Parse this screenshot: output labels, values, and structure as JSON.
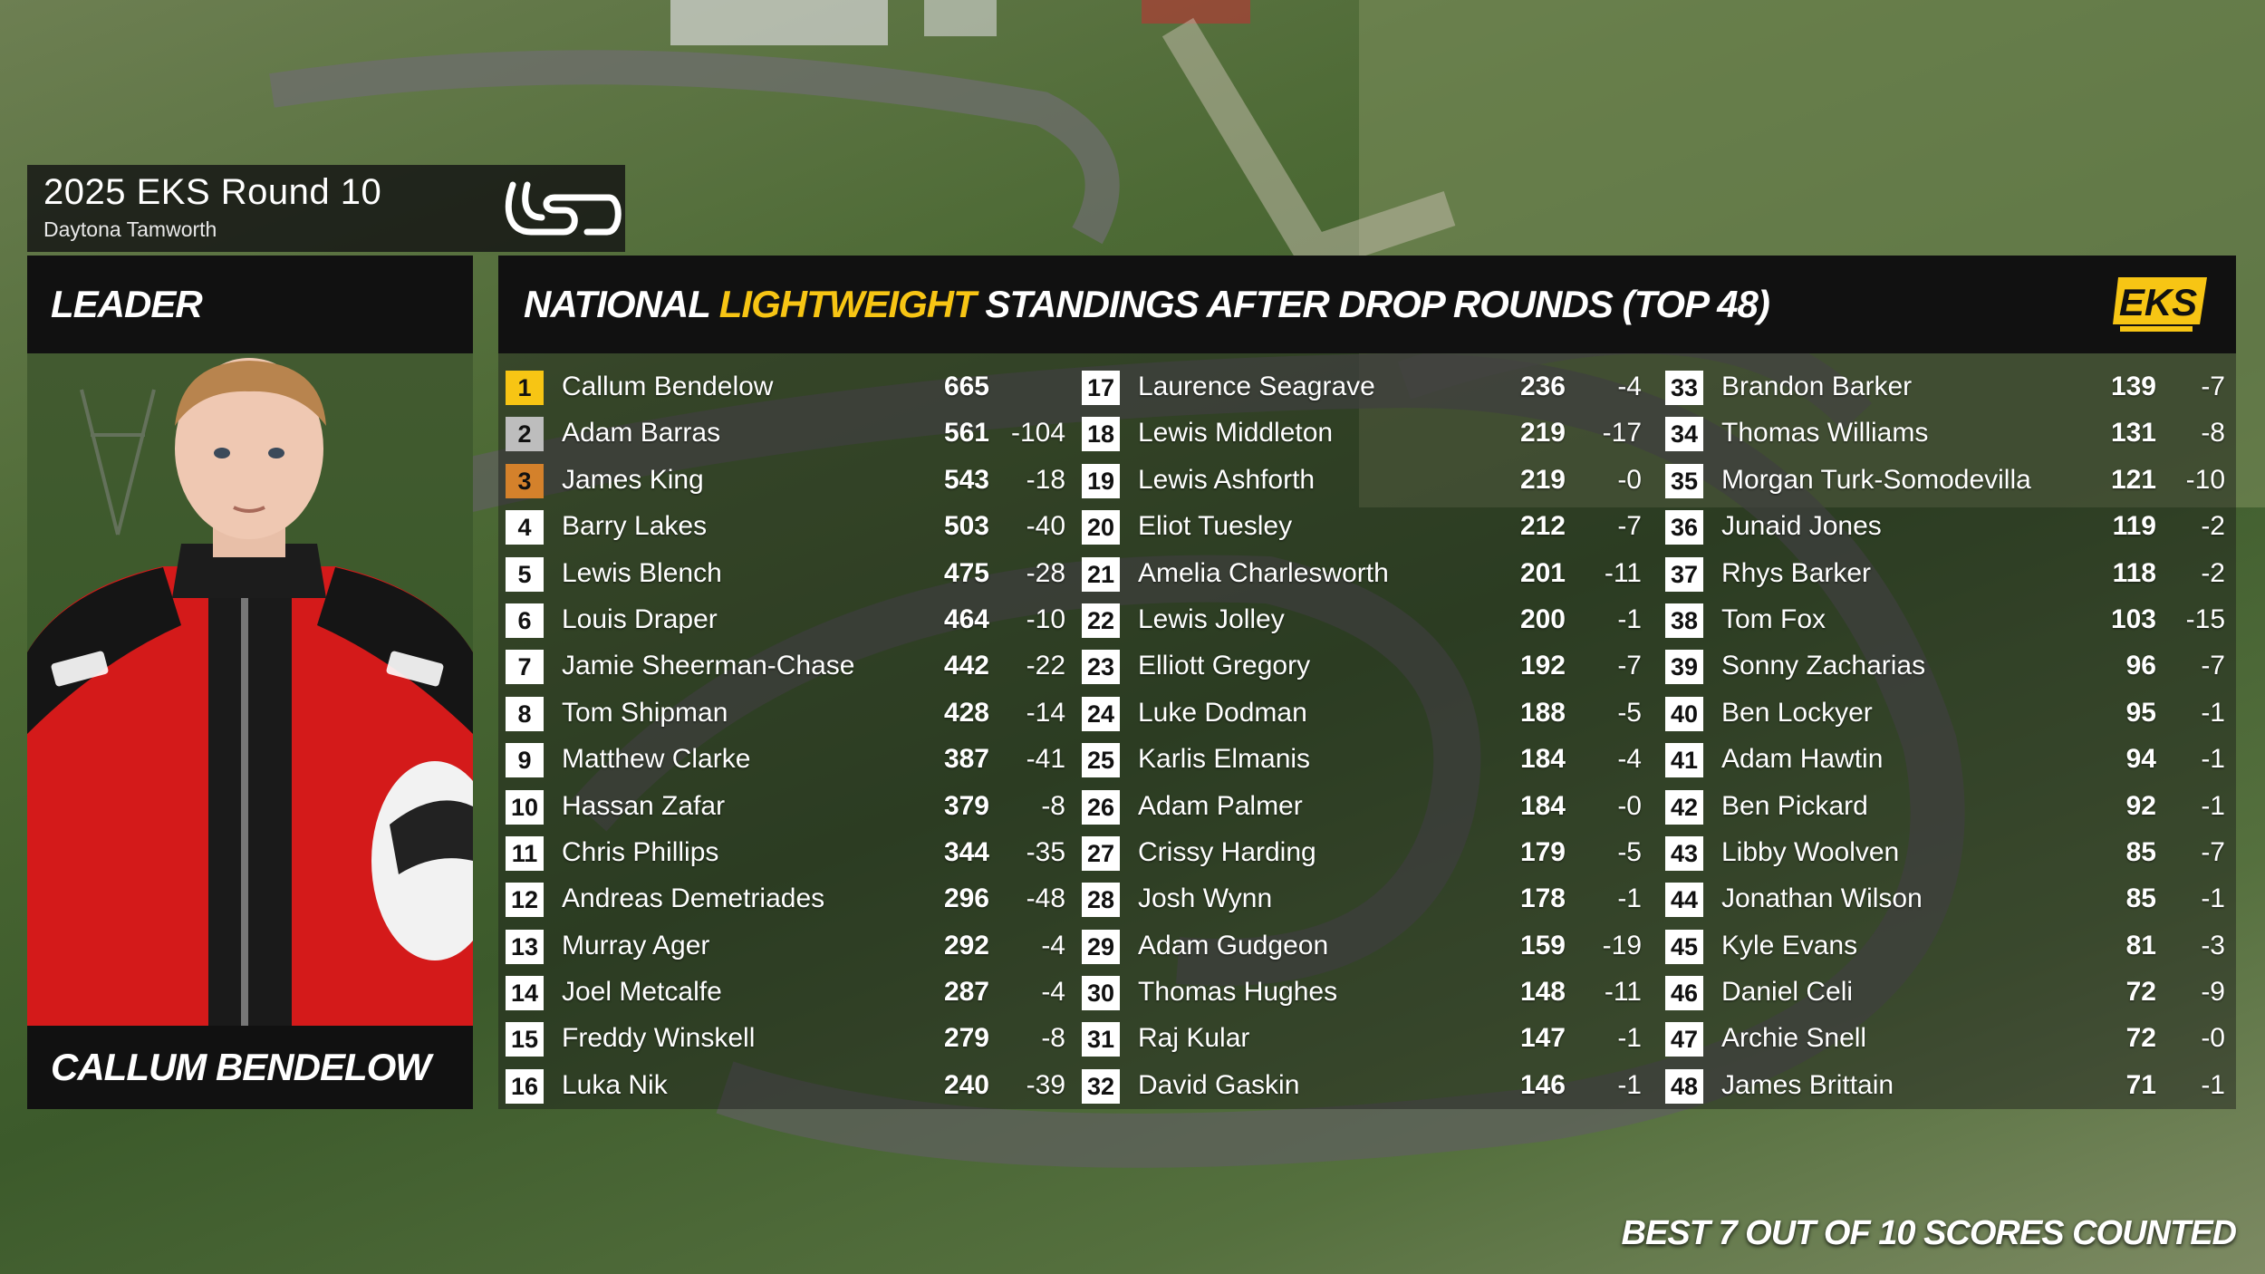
{
  "event": {
    "title": "2025 EKS Round 10",
    "venue": "Daytona Tamworth"
  },
  "leader": {
    "label": "LEADER",
    "name": "CALLUM BENDELOW"
  },
  "standings": {
    "title_part1": "NATIONAL ",
    "title_highlight": "LIGHTWEIGHT",
    "title_part2": " STANDINGS AFTER DROP ROUNDS (TOP 48)",
    "columns": [
      [
        {
          "pos": "1",
          "name": "Callum Bendelow",
          "pts": "665",
          "drop": ""
        },
        {
          "pos": "2",
          "name": "Adam Barras",
          "pts": "561",
          "drop": "-104"
        },
        {
          "pos": "3",
          "name": "James King",
          "pts": "543",
          "drop": "-18"
        },
        {
          "pos": "4",
          "name": "Barry Lakes",
          "pts": "503",
          "drop": "-40"
        },
        {
          "pos": "5",
          "name": "Lewis Blench",
          "pts": "475",
          "drop": "-28"
        },
        {
          "pos": "6",
          "name": "Louis Draper",
          "pts": "464",
          "drop": "-10"
        },
        {
          "pos": "7",
          "name": "Jamie Sheerman-Chase",
          "pts": "442",
          "drop": "-22"
        },
        {
          "pos": "8",
          "name": "Tom Shipman",
          "pts": "428",
          "drop": "-14"
        },
        {
          "pos": "9",
          "name": "Matthew Clarke",
          "pts": "387",
          "drop": "-41"
        },
        {
          "pos": "10",
          "name": "Hassan Zafar",
          "pts": "379",
          "drop": "-8"
        },
        {
          "pos": "11",
          "name": "Chris Phillips",
          "pts": "344",
          "drop": "-35"
        },
        {
          "pos": "12",
          "name": "Andreas Demetriades",
          "pts": "296",
          "drop": "-48"
        },
        {
          "pos": "13",
          "name": "Murray Ager",
          "pts": "292",
          "drop": "-4"
        },
        {
          "pos": "14",
          "name": "Joel Metcalfe",
          "pts": "287",
          "drop": "-4"
        },
        {
          "pos": "15",
          "name": "Freddy Winskell",
          "pts": "279",
          "drop": "-8"
        },
        {
          "pos": "16",
          "name": "Luka Nik",
          "pts": "240",
          "drop": "-39"
        }
      ],
      [
        {
          "pos": "17",
          "name": "Laurence Seagrave",
          "pts": "236",
          "drop": "-4"
        },
        {
          "pos": "18",
          "name": "Lewis Middleton",
          "pts": "219",
          "drop": "-17"
        },
        {
          "pos": "19",
          "name": "Lewis Ashforth",
          "pts": "219",
          "drop": "-0"
        },
        {
          "pos": "20",
          "name": "Eliot Tuesley",
          "pts": "212",
          "drop": "-7"
        },
        {
          "pos": "21",
          "name": "Amelia Charlesworth",
          "pts": "201",
          "drop": "-11"
        },
        {
          "pos": "22",
          "name": "Lewis Jolley",
          "pts": "200",
          "drop": "-1"
        },
        {
          "pos": "23",
          "name": "Elliott Gregory",
          "pts": "192",
          "drop": "-7"
        },
        {
          "pos": "24",
          "name": "Luke Dodman",
          "pts": "188",
          "drop": "-5"
        },
        {
          "pos": "25",
          "name": "Karlis Elmanis",
          "pts": "184",
          "drop": "-4"
        },
        {
          "pos": "26",
          "name": "Adam Palmer",
          "pts": "184",
          "drop": "-0"
        },
        {
          "pos": "27",
          "name": "Crissy Harding",
          "pts": "179",
          "drop": "-5"
        },
        {
          "pos": "28",
          "name": "Josh Wynn",
          "pts": "178",
          "drop": "-1"
        },
        {
          "pos": "29",
          "name": "Adam Gudgeon",
          "pts": "159",
          "drop": "-19"
        },
        {
          "pos": "30",
          "name": "Thomas Hughes",
          "pts": "148",
          "drop": "-11"
        },
        {
          "pos": "31",
          "name": "Raj Kular",
          "pts": "147",
          "drop": "-1"
        },
        {
          "pos": "32",
          "name": "David Gaskin",
          "pts": "146",
          "drop": "-1"
        }
      ],
      [
        {
          "pos": "33",
          "name": "Brandon Barker",
          "pts": "139",
          "drop": "-7"
        },
        {
          "pos": "34",
          "name": "Thomas Williams",
          "pts": "131",
          "drop": "-8"
        },
        {
          "pos": "35",
          "name": "Morgan Turk-Somodevilla",
          "pts": "121",
          "drop": "-10"
        },
        {
          "pos": "36",
          "name": "Junaid Jones",
          "pts": "119",
          "drop": "-2"
        },
        {
          "pos": "37",
          "name": "Rhys Barker",
          "pts": "118",
          "drop": "-2"
        },
        {
          "pos": "38",
          "name": "Tom Fox",
          "pts": "103",
          "drop": "-15"
        },
        {
          "pos": "39",
          "name": "Sonny Zacharias",
          "pts": "96",
          "drop": "-7"
        },
        {
          "pos": "40",
          "name": "Ben Lockyer",
          "pts": "95",
          "drop": "-1"
        },
        {
          "pos": "41",
          "name": "Adam Hawtin",
          "pts": "94",
          "drop": "-1"
        },
        {
          "pos": "42",
          "name": "Ben Pickard",
          "pts": "92",
          "drop": "-1"
        },
        {
          "pos": "43",
          "name": "Libby Woolven",
          "pts": "85",
          "drop": "-7"
        },
        {
          "pos": "44",
          "name": "Jonathan Wilson",
          "pts": "85",
          "drop": "-1"
        },
        {
          "pos": "45",
          "name": "Kyle Evans",
          "pts": "81",
          "drop": "-3"
        },
        {
          "pos": "46",
          "name": "Daniel Celi",
          "pts": "72",
          "drop": "-9"
        },
        {
          "pos": "47",
          "name": "Archie Snell",
          "pts": "72",
          "drop": "-0"
        },
        {
          "pos": "48",
          "name": "James Brittain",
          "pts": "71",
          "drop": "-1"
        }
      ]
    ]
  },
  "footer_note": "BEST 7 OUT OF 10 SCORES COUNTED",
  "colors": {
    "accent_yellow": "#f7c514",
    "silver": "#bdbdbd",
    "bronze": "#d4812b",
    "panel_black": "#111111"
  },
  "icons": {
    "venue_logo": "daytona-logo-icon",
    "series_logo": "eks-logo-icon"
  }
}
